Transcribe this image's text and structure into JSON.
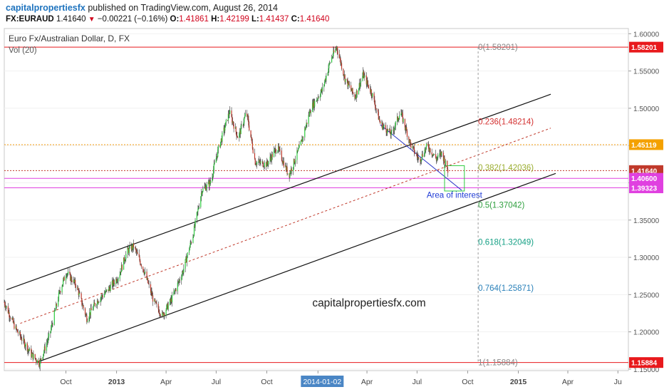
{
  "header": {
    "publisher": "capitalpropertiesfx",
    "published_text": "published on TradingView.com, August 26, 2014"
  },
  "quote": {
    "symbol": "FX:EURAUD",
    "last": "1.41640",
    "change": "−0.00221 (−0.16%)",
    "open_label": "O:",
    "open": "1.41861",
    "high_label": "H:",
    "high": "1.42199",
    "low_label": "L:",
    "low": "1.41437",
    "close_label": "C:",
    "close": "1.41640"
  },
  "chart_data": {
    "type": "candlestick",
    "title": "Euro Fx/Australian Dollar, D, FX",
    "indicator_label": "Vol (20)",
    "watermark": "capitalpropertiesfx.com",
    "y_range": [
      1.148,
      1.607
    ],
    "y_ticks": [
      "1.60000",
      "1.55000",
      "1.50000",
      "1.45000",
      "1.40000",
      "1.35000",
      "1.30000",
      "1.25000",
      "1.20000",
      "1.15000"
    ],
    "x_range": [
      "2012-06-11",
      "2015-07-20"
    ],
    "x_ticks": [
      {
        "date": "2012-10-01",
        "label": "Oct",
        "bold": false
      },
      {
        "date": "2013-01-01",
        "label": "2013",
        "bold": true
      },
      {
        "date": "2013-04-01",
        "label": "Apr",
        "bold": false
      },
      {
        "date": "2013-07-01",
        "label": "Jul",
        "bold": false
      },
      {
        "date": "2013-10-01",
        "label": "Oct",
        "bold": false
      },
      {
        "date": "2014-01-02",
        "label": "2014-01-02",
        "bold": false,
        "highlight": true
      },
      {
        "date": "2014-04-01",
        "label": "Apr",
        "bold": false
      },
      {
        "date": "2014-07-01",
        "label": "Jul",
        "bold": false
      },
      {
        "date": "2014-10-01",
        "label": "Oct",
        "bold": false
      },
      {
        "date": "2015-01-01",
        "label": "2015",
        "bold": true
      },
      {
        "date": "2015-04-01",
        "label": "Apr",
        "bold": false
      },
      {
        "date": "2015-07-01",
        "label": "Ju",
        "bold": false
      }
    ],
    "price_path": [
      {
        "date": "2012-06-11",
        "price": 1.24
      },
      {
        "date": "2012-07-01",
        "price": 1.205
      },
      {
        "date": "2012-07-30",
        "price": 1.17
      },
      {
        "date": "2012-08-14",
        "price": 1.158
      },
      {
        "date": "2012-09-01",
        "price": 1.195
      },
      {
        "date": "2012-09-20",
        "price": 1.255
      },
      {
        "date": "2012-10-02",
        "price": 1.28
      },
      {
        "date": "2012-10-20",
        "price": 1.262
      },
      {
        "date": "2012-11-08",
        "price": 1.218
      },
      {
        "date": "2012-11-25",
        "price": 1.24
      },
      {
        "date": "2012-12-15",
        "price": 1.255
      },
      {
        "date": "2013-01-05",
        "price": 1.275
      },
      {
        "date": "2013-01-20",
        "price": 1.308
      },
      {
        "date": "2013-02-01",
        "price": 1.315
      },
      {
        "date": "2013-02-20",
        "price": 1.282
      },
      {
        "date": "2013-03-10",
        "price": 1.24
      },
      {
        "date": "2013-03-25",
        "price": 1.222
      },
      {
        "date": "2013-04-10",
        "price": 1.242
      },
      {
        "date": "2013-05-01",
        "price": 1.28
      },
      {
        "date": "2013-05-20",
        "price": 1.33
      },
      {
        "date": "2013-06-05",
        "price": 1.39
      },
      {
        "date": "2013-06-20",
        "price": 1.4
      },
      {
        "date": "2013-07-05",
        "price": 1.445
      },
      {
        "date": "2013-07-25",
        "price": 1.495
      },
      {
        "date": "2013-08-10",
        "price": 1.46
      },
      {
        "date": "2013-08-25",
        "price": 1.495
      },
      {
        "date": "2013-09-10",
        "price": 1.428
      },
      {
        "date": "2013-10-01",
        "price": 1.425
      },
      {
        "date": "2013-10-20",
        "price": 1.448
      },
      {
        "date": "2013-11-10",
        "price": 1.41
      },
      {
        "date": "2013-12-01",
        "price": 1.45
      },
      {
        "date": "2013-12-20",
        "price": 1.5
      },
      {
        "date": "2014-01-10",
        "price": 1.525
      },
      {
        "date": "2014-01-25",
        "price": 1.565
      },
      {
        "date": "2014-02-05",
        "price": 1.582
      },
      {
        "date": "2014-02-20",
        "price": 1.54
      },
      {
        "date": "2014-03-10",
        "price": 1.515
      },
      {
        "date": "2014-03-25",
        "price": 1.545
      },
      {
        "date": "2014-04-10",
        "price": 1.52
      },
      {
        "date": "2014-04-25",
        "price": 1.48
      },
      {
        "date": "2014-05-15",
        "price": 1.465
      },
      {
        "date": "2014-06-01",
        "price": 1.495
      },
      {
        "date": "2014-06-20",
        "price": 1.45
      },
      {
        "date": "2014-07-05",
        "price": 1.43
      },
      {
        "date": "2014-07-20",
        "price": 1.45
      },
      {
        "date": "2014-08-05",
        "price": 1.432
      },
      {
        "date": "2014-08-15",
        "price": 1.44
      },
      {
        "date": "2014-08-26",
        "price": 1.4164
      }
    ],
    "horizontal_lines": [
      {
        "price": 1.58201,
        "color": "#e8191c",
        "label": "1.58201",
        "dash": false
      },
      {
        "price": 1.15884,
        "color": "#e8191c",
        "label": "1.15884",
        "dash": false
      },
      {
        "price": 1.45119,
        "color": "#f39c12",
        "label": "1.45119",
        "dash": true
      },
      {
        "price": 1.4164,
        "color": "#c0392b",
        "label": "1.41640",
        "dash": true
      },
      {
        "price": 1.406,
        "color": "#e040e0",
        "label": "1.40600",
        "dash": false
      },
      {
        "price": 1.39323,
        "color": "#e040e0",
        "label": "1.39323",
        "dash": false
      }
    ],
    "fib_levels": [
      {
        "ratio": "0",
        "price": "1.58201",
        "color": "#888888"
      },
      {
        "ratio": "0.236",
        "price": "1.48214",
        "color": "#d32f2f"
      },
      {
        "ratio": "0.382",
        "price": "1.42036",
        "color": "#9aad2f"
      },
      {
        "ratio": "0.5",
        "price": "1.37042",
        "color": "#2e9f3e"
      },
      {
        "ratio": "0.618",
        "price": "1.32049",
        "color": "#16a085"
      },
      {
        "ratio": "0.764",
        "price": "1.25871",
        "color": "#2980b9"
      },
      {
        "ratio": "1",
        "price": "1.15884",
        "color": "#888888"
      }
    ],
    "annotations": [
      {
        "text": "Area of interest",
        "color": "#1f3bd6"
      }
    ]
  }
}
